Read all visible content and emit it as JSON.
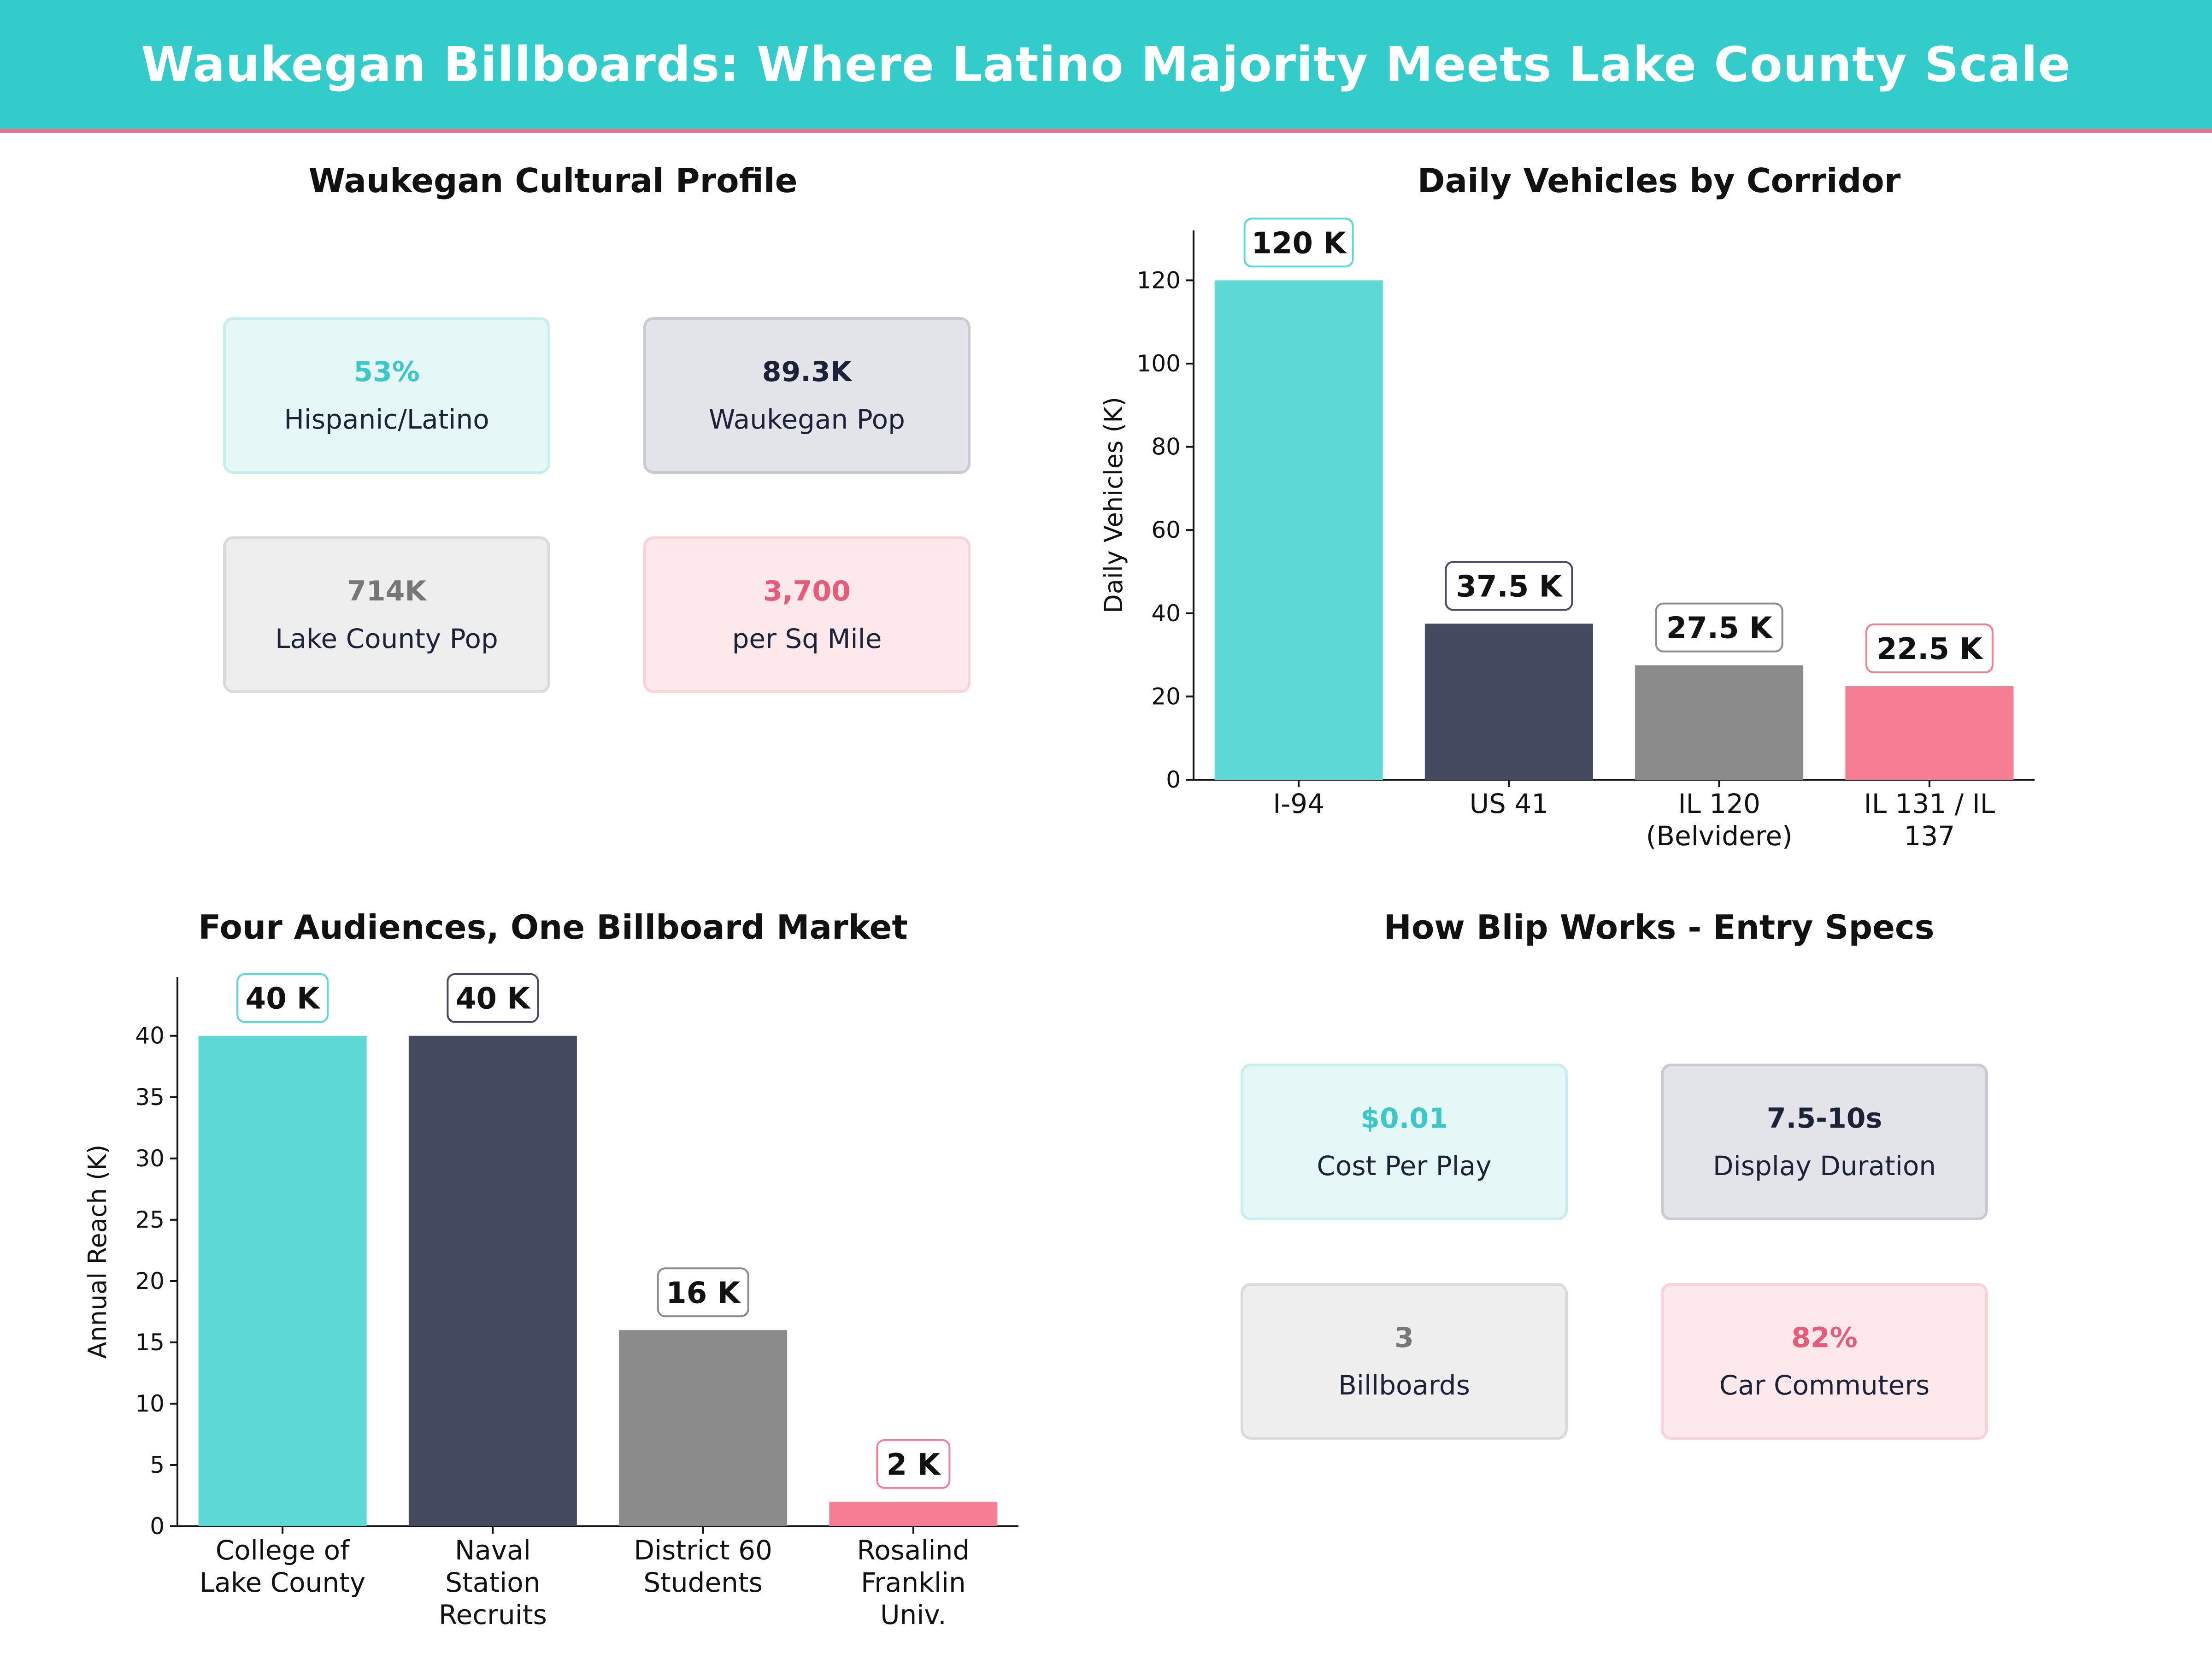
{
  "header": {
    "title": "Waukegan Billboards: Where Latino Majority Meets Lake County Scale"
  },
  "colors": {
    "teal": "#5DD8D5",
    "navy": "#464A60",
    "gray": "#8B8B8B",
    "pink": "#F57E94"
  },
  "profile": {
    "title": "Waukegan Cultural Profile",
    "cards": [
      {
        "value": "53%",
        "label": "Hispanic/Latino",
        "color": "#3CC8C8",
        "bg": "#E6F7F7",
        "border": "#C8EEEE"
      },
      {
        "value": "89.3K",
        "label": "Waukegan Pop",
        "color": "#1C2238",
        "bg": "#E3E4E9",
        "border": "#CACBD2"
      },
      {
        "value": "714K",
        "label": "Lake County Pop",
        "color": "#777777",
        "bg": "#EEEEEE",
        "border": "#DADADA"
      },
      {
        "value": "3,700",
        "label": "per Sq Mile",
        "color": "#E85A78",
        "bg": "#FDE9EC",
        "border": "#F8D3DA"
      }
    ]
  },
  "specs": {
    "title": "How Blip Works - Entry Specs",
    "cards": [
      {
        "value": "$0.01",
        "label": "Cost Per Play",
        "color": "#3CC8C8",
        "bg": "#E6F7F7",
        "border": "#C8EEEE"
      },
      {
        "value": "7.5-10s",
        "label": "Display Duration",
        "color": "#1C2238",
        "bg": "#E3E4E9",
        "border": "#CACBD2"
      },
      {
        "value": "3",
        "label": "Billboards",
        "color": "#777777",
        "bg": "#EEEEEE",
        "border": "#DADADA"
      },
      {
        "value": "82%",
        "label": "Car Commuters",
        "color": "#E85A78",
        "bg": "#FDE9EC",
        "border": "#F8D3DA"
      }
    ]
  },
  "chart_data": [
    {
      "type": "bar",
      "title": "Daily Vehicles by Corridor",
      "xlabel": "",
      "ylabel": "Daily Vehicles (K)",
      "categories": [
        [
          "I-94"
        ],
        [
          "US 41"
        ],
        [
          "IL 120",
          "(Belvidere)"
        ],
        [
          "IL 131 / IL",
          "137"
        ]
      ],
      "values": [
        120,
        37.5,
        27.5,
        22.5
      ],
      "data_labels": [
        "120 K",
        "37.5 K",
        "27.5 K",
        "22.5 K"
      ],
      "yticks": [
        0,
        20,
        40,
        60,
        80,
        100,
        120
      ],
      "ylim": [
        0,
        132
      ],
      "grid": false,
      "legend": "none"
    },
    {
      "type": "bar",
      "title": "Four Audiences, One Billboard Market",
      "xlabel": "",
      "ylabel": "Annual Reach (K)",
      "categories": [
        [
          "College of",
          "Lake County"
        ],
        [
          "Naval",
          "Station",
          "Recruits"
        ],
        [
          "District 60",
          "Students"
        ],
        [
          "Rosalind",
          "Franklin",
          "Univ."
        ]
      ],
      "values": [
        40,
        40,
        16,
        2
      ],
      "data_labels": [
        "40 K",
        "40 K",
        "16 K",
        "2 K"
      ],
      "yticks": [
        0,
        5,
        10,
        15,
        20,
        25,
        30,
        35,
        40
      ],
      "ylim": [
        0,
        44.8
      ],
      "grid": false,
      "legend": "none"
    }
  ]
}
